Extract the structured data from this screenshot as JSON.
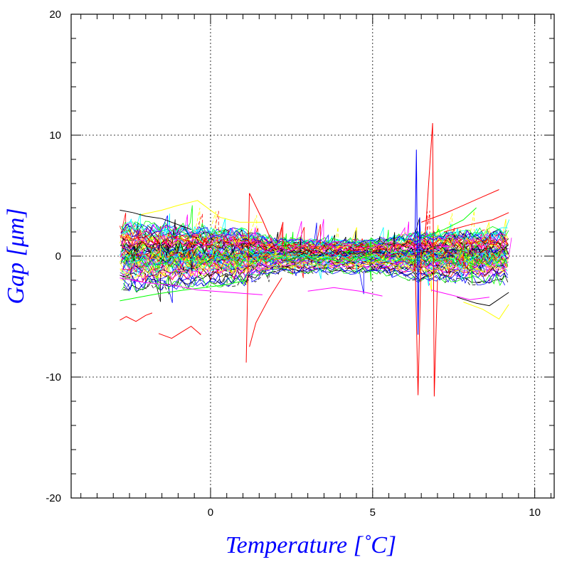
{
  "chart_data": {
    "type": "line",
    "xlabel": "Temperature [˚C]",
    "ylabel": "Gap [μm]",
    "xlim": [
      -4.3,
      10.6
    ],
    "ylim": [
      -20,
      20
    ],
    "x_ticks": [
      0,
      5,
      10
    ],
    "y_ticks": [
      -20,
      -10,
      0,
      10,
      20
    ],
    "x_tick_labels": [
      "0",
      "5",
      "10"
    ],
    "y_tick_labels": [
      "-20",
      "-10",
      "0",
      "10",
      "20"
    ],
    "grid": true,
    "grid_style": "dotted",
    "legend": "none",
    "label_color": "#0000ff",
    "series_colors": [
      "#000000",
      "#ff0000",
      "#00ff00",
      "#0000ff",
      "#ffff00",
      "#ff00ff",
      "#00ffff"
    ],
    "x_range_of_data": [
      -2.8,
      9.2
    ],
    "band": {
      "center": [
        [
          -2.8,
          0.0
        ],
        [
          0,
          0.0
        ],
        [
          5,
          0.0
        ],
        [
          9.2,
          0.0
        ]
      ],
      "half_width": [
        [
          -2.8,
          2.5
        ],
        [
          1.0,
          2.0
        ],
        [
          2.0,
          1.3
        ],
        [
          5.0,
          1.2
        ],
        [
          6.3,
          1.8
        ],
        [
          9.2,
          2.0
        ]
      ]
    },
    "excursions": [
      {
        "color": "#ff0000",
        "x": [
          -2.8,
          -2.6,
          -2.3,
          -2.0,
          -1.8
        ],
        "y": [
          -5.3,
          -5.0,
          -5.4,
          -4.9,
          -4.7
        ]
      },
      {
        "color": "#ff0000",
        "x": [
          -1.6,
          -1.2,
          -0.9,
          -0.6,
          -0.3
        ],
        "y": [
          -6.4,
          -6.8,
          -6.3,
          -5.8,
          -6.5
        ]
      },
      {
        "color": "#ff0000",
        "x": [
          1.1,
          1.2,
          1.6,
          2.0
        ],
        "y": [
          -8.8,
          5.2,
          3.0,
          0.5
        ]
      },
      {
        "color": "#0000ff",
        "x": [
          6.3,
          6.35,
          6.4,
          6.45,
          6.5
        ],
        "y": [
          0,
          8.8,
          -6.5,
          3.2,
          0
        ]
      },
      {
        "color": "#ff0000",
        "x": [
          6.3,
          6.4,
          6.5
        ],
        "y": [
          1,
          -11.5,
          0.5
        ]
      },
      {
        "color": "#ff0000",
        "x": [
          6.6,
          6.85,
          6.9,
          7.0
        ],
        "y": [
          0.8,
          11.0,
          -11.6,
          -2.0
        ]
      },
      {
        "color": "#ff0000",
        "x": [
          6.5,
          7.2,
          7.8,
          8.3,
          8.9
        ],
        "y": [
          2.8,
          3.5,
          4.2,
          4.8,
          5.5
        ]
      },
      {
        "color": "#ff0000",
        "x": [
          7.2,
          8.0,
          8.7,
          9.2
        ],
        "y": [
          2.0,
          2.6,
          3.0,
          3.6
        ]
      },
      {
        "color": "#ffff00",
        "x": [
          -2.2,
          -1.5,
          -1.0,
          -0.4,
          0.3,
          0.9,
          1.6
        ],
        "y": [
          3.4,
          3.8,
          4.2,
          4.6,
          3.2,
          2.8,
          2.8
        ]
      },
      {
        "color": "#ffff00",
        "x": [
          7.8,
          8.4,
          8.9,
          9.2
        ],
        "y": [
          -3.8,
          -4.4,
          -5.2,
          -4.0
        ]
      },
      {
        "color": "#000000",
        "x": [
          -2.8,
          -2.4,
          -2.0,
          -1.5,
          -1.0,
          -0.6
        ],
        "y": [
          3.8,
          3.6,
          3.3,
          3.1,
          2.6,
          2.2
        ]
      },
      {
        "color": "#00ff00",
        "x": [
          -2.8,
          -2.2,
          -1.6,
          -0.8,
          0.4,
          1.1
        ],
        "y": [
          -3.7,
          -3.4,
          -3.1,
          -2.8,
          -2.4,
          -2.0
        ]
      },
      {
        "color": "#00ff00",
        "x": [
          6.6,
          7.2,
          7.8,
          8.2
        ],
        "y": [
          1.6,
          2.2,
          3.0,
          4.0
        ]
      },
      {
        "color": "#ff00ff",
        "x": [
          -2.8,
          -2.0,
          -1.2,
          -0.4,
          0.6,
          1.6
        ],
        "y": [
          -1.8,
          -2.2,
          -2.4,
          -2.8,
          -3.0,
          -3.2
        ]
      },
      {
        "color": "#ff00ff",
        "x": [
          3.0,
          3.8,
          4.6,
          5.3
        ],
        "y": [
          -2.9,
          -2.6,
          -2.9,
          -3.3
        ]
      },
      {
        "color": "#ff0000",
        "x": [
          1.2,
          1.4,
          1.8,
          2.2
        ],
        "y": [
          -7.5,
          -5.5,
          -3.5,
          -1.8
        ]
      },
      {
        "color": "#000000",
        "x": [
          7.6,
          8.2,
          8.6,
          9.2
        ],
        "y": [
          -3.4,
          -3.9,
          -4.1,
          -3.0
        ]
      },
      {
        "color": "#ff00ff",
        "x": [
          6.8,
          7.4,
          8.0,
          8.6
        ],
        "y": [
          -2.8,
          -3.2,
          -3.6,
          -3.4
        ]
      }
    ]
  }
}
